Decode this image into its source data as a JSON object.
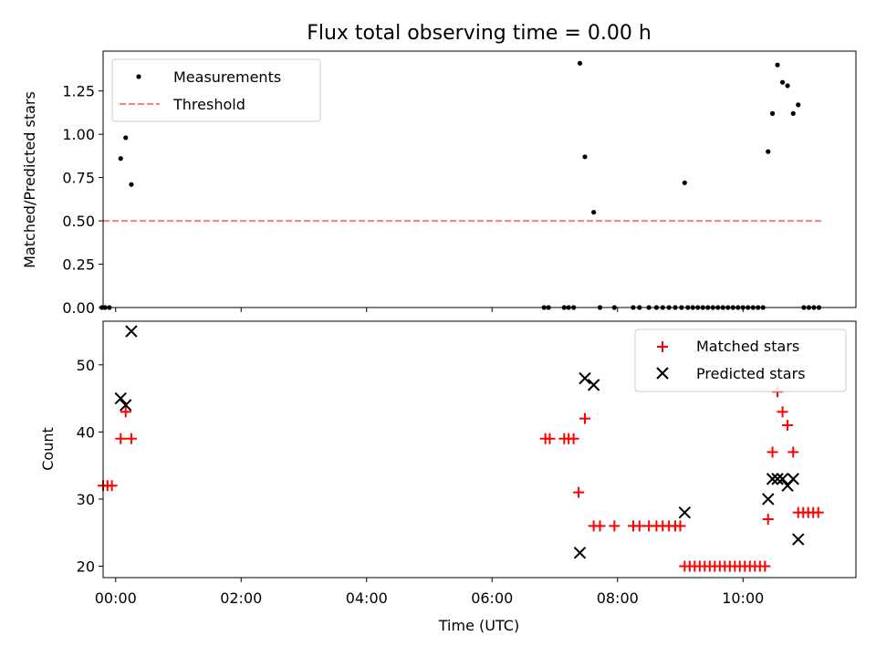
{
  "chart_data": [
    {
      "panel": "top",
      "type": "scatter",
      "title": "Flux total observing time = 0.00 h",
      "xlabel": "",
      "ylabel": "Matched/Predicted stars",
      "xlim": [
        -0.2,
        11.8
      ],
      "ylim": [
        0,
        1.48
      ],
      "yticks": [
        0,
        0.25,
        0.5,
        0.75,
        1.0,
        1.25
      ],
      "ytick_labels": [
        "0.00",
        "0.25",
        "0.50",
        "0.75",
        "1.00",
        "1.25"
      ],
      "xticks": [
        0,
        2,
        4,
        6,
        8,
        10
      ],
      "xtick_labels": [
        "",
        "",
        "",
        "",
        "",
        ""
      ],
      "legend_position": "top-left",
      "series": [
        {
          "name": "Measurements",
          "color": "#000000",
          "marker": "dot",
          "points": [
            [
              -0.22,
              0.0
            ],
            [
              -0.17,
              0.0
            ],
            [
              -0.1,
              0.0
            ],
            [
              0.08,
              0.86
            ],
            [
              0.16,
              0.98
            ],
            [
              0.25,
              0.71
            ],
            [
              6.83,
              0.0
            ],
            [
              6.9,
              0.0
            ],
            [
              7.15,
              0.0
            ],
            [
              7.22,
              0.0
            ],
            [
              7.3,
              0.0
            ],
            [
              7.4,
              1.41
            ],
            [
              7.48,
              0.87
            ],
            [
              7.62,
              0.55
            ],
            [
              7.72,
              0.0
            ],
            [
              7.95,
              0.0
            ],
            [
              8.25,
              0.0
            ],
            [
              8.35,
              0.0
            ],
            [
              8.5,
              0.0
            ],
            [
              8.62,
              0.0
            ],
            [
              8.72,
              0.0
            ],
            [
              8.82,
              0.0
            ],
            [
              8.92,
              0.0
            ],
            [
              9.02,
              0.0
            ],
            [
              9.07,
              0.72
            ],
            [
              9.12,
              0.0
            ],
            [
              9.2,
              0.0
            ],
            [
              9.28,
              0.0
            ],
            [
              9.36,
              0.0
            ],
            [
              9.44,
              0.0
            ],
            [
              9.52,
              0.0
            ],
            [
              9.6,
              0.0
            ],
            [
              9.68,
              0.0
            ],
            [
              9.76,
              0.0
            ],
            [
              9.84,
              0.0
            ],
            [
              9.92,
              0.0
            ],
            [
              10.0,
              0.0
            ],
            [
              10.08,
              0.0
            ],
            [
              10.16,
              0.0
            ],
            [
              10.24,
              0.0
            ],
            [
              10.32,
              0.0
            ],
            [
              10.4,
              0.9
            ],
            [
              10.47,
              1.12
            ],
            [
              10.55,
              1.4
            ],
            [
              10.63,
              1.3
            ],
            [
              10.71,
              1.28
            ],
            [
              10.8,
              1.12
            ],
            [
              10.88,
              1.17
            ],
            [
              10.97,
              0.0
            ],
            [
              11.05,
              0.0
            ],
            [
              11.13,
              0.0
            ],
            [
              11.21,
              0.0
            ]
          ]
        },
        {
          "name": "Threshold",
          "color": "#ff7f7f",
          "style": "dashed",
          "line": [
            [
              -0.2,
              0.5
            ],
            [
              11.25,
              0.5
            ]
          ]
        }
      ]
    },
    {
      "panel": "bottom",
      "type": "scatter",
      "title": "",
      "xlabel": "Time (UTC)",
      "ylabel": "Count",
      "xlim": [
        -0.2,
        11.8
      ],
      "ylim": [
        18.3,
        56.5
      ],
      "yticks": [
        20,
        30,
        40,
        50
      ],
      "ytick_labels": [
        "20",
        "30",
        "40",
        "50"
      ],
      "xticks": [
        0,
        2,
        4,
        6,
        8,
        10
      ],
      "xtick_labels": [
        "00:00",
        "02:00",
        "04:00",
        "06:00",
        "08:00",
        "10:00"
      ],
      "legend_position": "top-right",
      "series": [
        {
          "name": "Matched stars",
          "color": "#ff0000",
          "marker": "plus",
          "points": [
            [
              -0.2,
              32
            ],
            [
              -0.13,
              32
            ],
            [
              -0.06,
              32
            ],
            [
              0.08,
              39
            ],
            [
              0.16,
              43
            ],
            [
              0.25,
              39
            ],
            [
              6.85,
              39
            ],
            [
              6.92,
              39
            ],
            [
              7.15,
              39
            ],
            [
              7.22,
              39
            ],
            [
              7.3,
              39
            ],
            [
              7.38,
              31
            ],
            [
              7.48,
              42
            ],
            [
              7.62,
              26
            ],
            [
              7.72,
              26
            ],
            [
              7.95,
              26
            ],
            [
              8.25,
              26
            ],
            [
              8.35,
              26
            ],
            [
              8.5,
              26
            ],
            [
              8.62,
              26
            ],
            [
              8.72,
              26
            ],
            [
              8.82,
              26
            ],
            [
              8.92,
              26
            ],
            [
              9.0,
              26
            ],
            [
              9.07,
              20
            ],
            [
              9.15,
              20
            ],
            [
              9.23,
              20
            ],
            [
              9.31,
              20
            ],
            [
              9.39,
              20
            ],
            [
              9.47,
              20
            ],
            [
              9.55,
              20
            ],
            [
              9.63,
              20
            ],
            [
              9.71,
              20
            ],
            [
              9.79,
              20
            ],
            [
              9.87,
              20
            ],
            [
              9.95,
              20
            ],
            [
              10.03,
              20
            ],
            [
              10.11,
              20
            ],
            [
              10.19,
              20
            ],
            [
              10.27,
              20
            ],
            [
              10.35,
              20
            ],
            [
              10.4,
              27
            ],
            [
              10.47,
              37
            ],
            [
              10.55,
              46
            ],
            [
              10.63,
              43
            ],
            [
              10.71,
              41
            ],
            [
              10.8,
              37
            ],
            [
              10.88,
              28
            ],
            [
              10.96,
              28
            ],
            [
              11.04,
              28
            ],
            [
              11.12,
              28
            ],
            [
              11.2,
              28
            ]
          ]
        },
        {
          "name": "Predicted stars",
          "color": "#000000",
          "marker": "x",
          "points": [
            [
              0.08,
              45
            ],
            [
              0.16,
              44
            ],
            [
              0.25,
              55
            ],
            [
              7.4,
              22
            ],
            [
              7.48,
              48
            ],
            [
              7.62,
              47
            ],
            [
              9.07,
              28
            ],
            [
              10.4,
              30
            ],
            [
              10.47,
              33
            ],
            [
              10.55,
              33
            ],
            [
              10.63,
              33
            ],
            [
              10.71,
              32
            ],
            [
              10.8,
              33
            ],
            [
              10.88,
              24
            ]
          ]
        }
      ]
    }
  ]
}
